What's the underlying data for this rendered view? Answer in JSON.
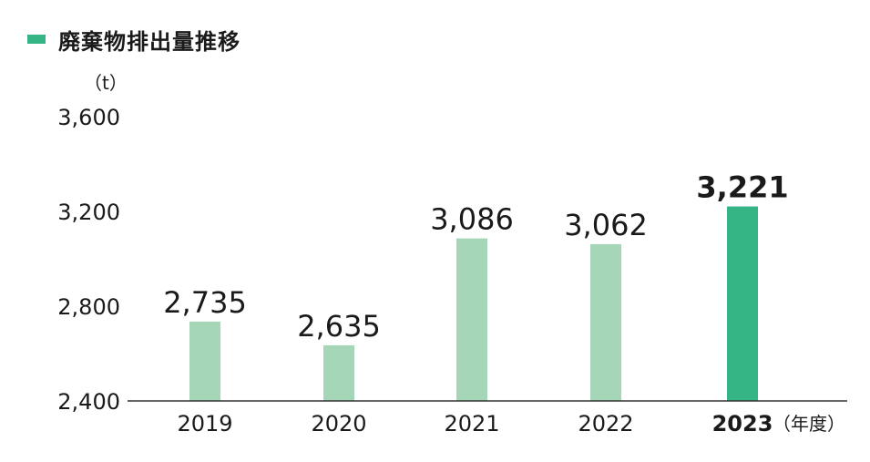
{
  "colors": {
    "accent": "#35b586",
    "past": "#a6d6b8",
    "axis": "#333333"
  },
  "chart_data": {
    "type": "bar",
    "title": "廃棄物排出量推移",
    "y_unit": "（t）",
    "x_unit": "（年度）",
    "categories": [
      "2019",
      "2020",
      "2021",
      "2022",
      "2023"
    ],
    "values": [
      2735,
      2635,
      3086,
      3062,
      3221
    ],
    "value_labels": [
      "2,735",
      "2,635",
      "3,086",
      "3,062",
      "3,221"
    ],
    "highlight_index": 4,
    "ylim": [
      2400,
      3600
    ],
    "y_ticks": [
      "2,400",
      "2,800",
      "3,200",
      "3,600"
    ],
    "grid": false,
    "legend": "top-left"
  }
}
